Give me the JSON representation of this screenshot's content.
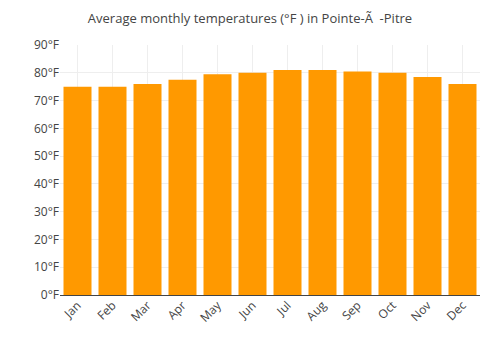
{
  "chart_data": {
    "type": "bar",
    "title": "Average monthly temperatures (°F ) in Pointe-Ã  -Pitre",
    "categories": [
      "Jan",
      "Feb",
      "Mar",
      "Apr",
      "May",
      "Jun",
      "Jul",
      "Aug",
      "Sep",
      "Oct",
      "Nov",
      "Dec"
    ],
    "values": [
      75,
      75,
      76,
      77.5,
      79.5,
      80,
      81,
      81,
      80.5,
      80,
      78.5,
      76
    ],
    "color": "#FF9900",
    "ylim": [
      0,
      90
    ],
    "yticks": [
      {
        "value": 0,
        "label": "0°F"
      },
      {
        "value": 10,
        "label": "10°F"
      },
      {
        "value": 20,
        "label": "20°F"
      },
      {
        "value": 30,
        "label": "30°F"
      },
      {
        "value": 40,
        "label": "40°F"
      },
      {
        "value": 50,
        "label": "50°F"
      },
      {
        "value": 60,
        "label": "60°F"
      },
      {
        "value": 70,
        "label": "70°F"
      },
      {
        "value": 80,
        "label": "80°F"
      },
      {
        "value": 90,
        "label": "90°F"
      }
    ],
    "grid": true
  }
}
